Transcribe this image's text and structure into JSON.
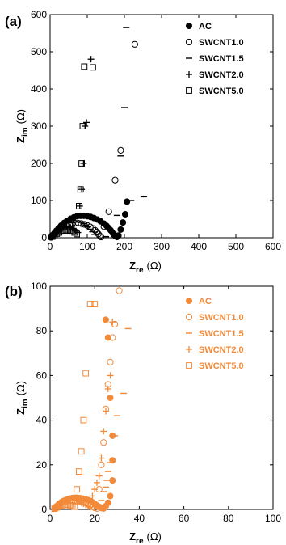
{
  "chart_data": [
    {
      "panel": "(a)",
      "type": "scatter",
      "title": "",
      "xlabel_main": "Z",
      "xlabel_sub": "re",
      "xlabel_unit": "(Ω)",
      "ylabel_main": "Z",
      "ylabel_sub": "im",
      "ylabel_unit": "(Ω)",
      "xlim": [
        0,
        600
      ],
      "ylim": [
        0,
        600
      ],
      "xticks": [
        0,
        100,
        200,
        300,
        400,
        500,
        600
      ],
      "yticks": [
        0,
        100,
        200,
        300,
        400,
        500,
        600
      ],
      "color": "#000000",
      "legend_position": "top-right",
      "series": [
        {
          "name": "AC",
          "marker": "filled-circle",
          "x": [
            2,
            5,
            8,
            12,
            17,
            23,
            30,
            38,
            46,
            55,
            64,
            73,
            82,
            91,
            100,
            109,
            118,
            127,
            136,
            145,
            152,
            158,
            163,
            168,
            172,
            176,
            180,
            184,
            190,
            196,
            202,
            207
          ],
          "y": [
            1,
            4,
            8,
            13,
            19,
            26,
            33,
            40,
            46,
            51,
            55,
            58,
            59,
            59,
            58,
            56,
            53,
            49,
            44,
            38,
            32,
            26,
            20,
            13,
            8,
            4,
            2,
            6,
            22,
            41,
            63,
            97
          ]
        },
        {
          "name": "SWCNT1.0",
          "marker": "open-circle",
          "x": [
            3,
            6,
            10,
            15,
            21,
            28,
            36,
            44,
            52,
            60,
            68,
            76,
            84,
            92,
            100,
            108,
            115,
            121,
            126,
            130,
            134,
            137,
            145,
            158,
            175,
            190,
            228
          ],
          "y": [
            1,
            4,
            8,
            13,
            18,
            24,
            29,
            33,
            36,
            38,
            39,
            39,
            38,
            36,
            33,
            29,
            25,
            20,
            15,
            10,
            5,
            2,
            30,
            70,
            155,
            235,
            520
          ]
        },
        {
          "name": "SWCNT1.5",
          "marker": "dash",
          "x": [
            60,
            66,
            72,
            78,
            84,
            90,
            96,
            102,
            108,
            114,
            120,
            150,
            170,
            180,
            190,
            200,
            205,
            218,
            252
          ],
          "y": [
            40,
            42,
            43,
            42,
            41,
            38,
            34,
            29,
            23,
            16,
            9,
            3,
            15,
            60,
            220,
            350,
            565,
            100,
            110
          ]
        },
        {
          "name": "SWCNT2.0",
          "marker": "plus",
          "x": [
            5,
            10,
            15,
            20,
            25,
            30,
            35,
            40,
            45,
            50,
            55,
            60,
            65,
            70,
            75,
            80,
            85,
            90,
            94,
            98,
            110
          ],
          "y": [
            4,
            9,
            14,
            18,
            22,
            25,
            28,
            30,
            30,
            30,
            28,
            25,
            22,
            18,
            14,
            85,
            130,
            200,
            300,
            310,
            480
          ]
        },
        {
          "name": "SWCNT5.0",
          "marker": "open-square",
          "x": [
            6,
            12,
            18,
            24,
            30,
            36,
            42,
            48,
            54,
            60,
            66,
            72,
            78,
            82,
            85,
            88,
            92,
            115
          ],
          "y": [
            3,
            7,
            11,
            14,
            17,
            19,
            20,
            20,
            19,
            17,
            14,
            10,
            85,
            130,
            200,
            300,
            460,
            458
          ]
        }
      ]
    },
    {
      "panel": "(b)",
      "type": "scatter",
      "title": "",
      "xlabel_main": "Z",
      "xlabel_sub": "re",
      "xlabel_unit": "(Ω)",
      "ylabel_main": "Z",
      "ylabel_sub": "im",
      "ylabel_unit": "(Ω)",
      "xlim": [
        0,
        100
      ],
      "ylim": [
        0,
        100
      ],
      "xticks": [
        0,
        20,
        40,
        60,
        80,
        100
      ],
      "yticks": [
        0,
        20,
        40,
        60,
        80,
        100
      ],
      "color": "#f28a3a",
      "legend_position": "top-right",
      "series": [
        {
          "name": "AC",
          "marker": "filled-circle",
          "x": [
            2,
            3,
            4,
            5,
            6,
            7,
            8,
            9,
            10,
            11,
            12,
            13,
            14,
            15,
            16,
            17,
            18,
            19,
            20,
            21,
            22,
            23,
            24,
            25,
            26,
            27,
            28,
            28,
            28,
            27,
            26,
            25
          ],
          "y": [
            0.5,
            1.5,
            2.5,
            3.2,
            3.8,
            4.2,
            4.6,
            4.9,
            5.1,
            5.2,
            5.2,
            5.1,
            5,
            4.8,
            4.5,
            4.2,
            3.8,
            3.2,
            2.5,
            1.8,
            1.2,
            0.6,
            0.4,
            1.5,
            3,
            6,
            13,
            22,
            33,
            50,
            77,
            85
          ]
        },
        {
          "name": "SWCNT1.0",
          "marker": "open-circle",
          "x": [
            3,
            4,
            5,
            6,
            7,
            8,
            9,
            10,
            11,
            12,
            13,
            14,
            15,
            16,
            17,
            18,
            19,
            20,
            21,
            22,
            23,
            24,
            25,
            26,
            27,
            28,
            29,
            31
          ],
          "y": [
            0.8,
            1.8,
            2.6,
            3.2,
            3.6,
            3.9,
            4.1,
            4.2,
            4.1,
            4,
            3.8,
            3.5,
            3.2,
            2.8,
            2.3,
            1.7,
            1.2,
            0.7,
            0.4,
            9,
            20,
            30,
            45,
            56,
            66,
            77,
            83,
            98
          ]
        },
        {
          "name": "SWCNT1.5",
          "marker": "dash",
          "x": [
            22,
            23,
            24,
            25,
            25.5,
            26,
            27,
            29,
            30,
            33,
            35
          ],
          "y": [
            2,
            4,
            8,
            10,
            13,
            17,
            21,
            33,
            42,
            52,
            81
          ]
        },
        {
          "name": "SWCNT2.0",
          "marker": "plus",
          "x": [
            4,
            5,
            6,
            7,
            8,
            9,
            10,
            11,
            12,
            13,
            14,
            15,
            16,
            17,
            18,
            19,
            20,
            21,
            22,
            23,
            24,
            25,
            26,
            27,
            28
          ],
          "y": [
            1,
            2,
            3,
            3.5,
            3.8,
            4,
            4.1,
            4,
            3.8,
            3.5,
            3,
            2.5,
            2,
            1.5,
            1,
            6,
            9,
            12,
            15,
            23,
            35,
            44,
            54,
            60,
            84
          ]
        },
        {
          "name": "SWCNT5.0",
          "marker": "open-square",
          "x": [
            2,
            3,
            4,
            5,
            6,
            7,
            8,
            9,
            10,
            11,
            12,
            13,
            14,
            15,
            16,
            18,
            20
          ],
          "y": [
            0.3,
            0.9,
            1.4,
            1.8,
            2,
            2.1,
            2,
            1.8,
            1.5,
            1.2,
            9,
            17,
            26,
            40,
            61,
            92,
            92
          ]
        }
      ]
    }
  ]
}
